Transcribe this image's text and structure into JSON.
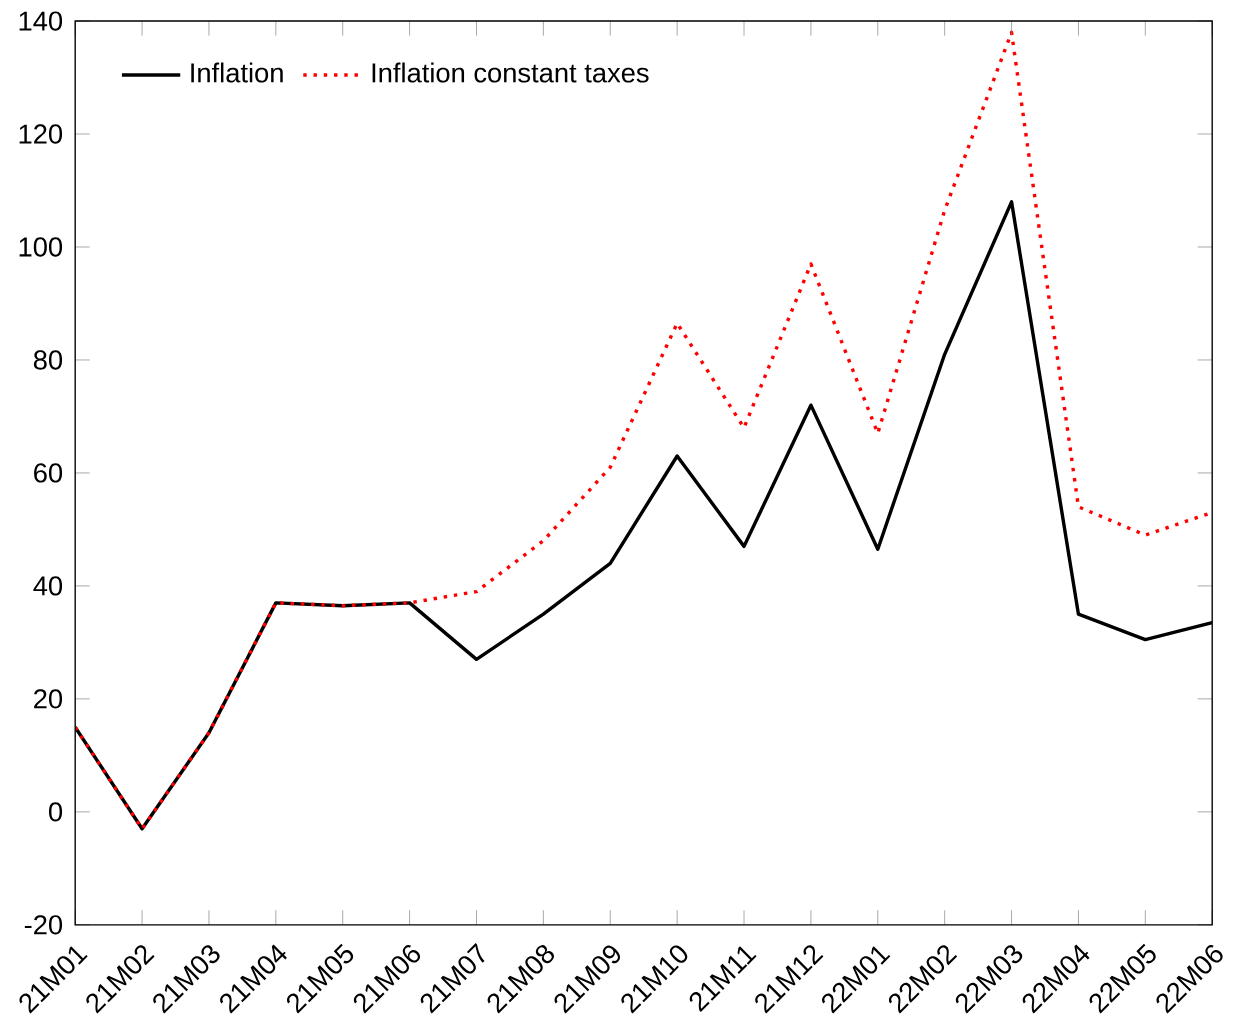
{
  "chart_data": {
    "type": "line",
    "categories": [
      "21M01",
      "21M02",
      "21M03",
      "21M04",
      "21M05",
      "21M06",
      "21M07",
      "21M08",
      "21M09",
      "21M10",
      "21M11",
      "21M12",
      "22M01",
      "22M02",
      "22M03",
      "22M04",
      "22M05",
      "22M06"
    ],
    "series": [
      {
        "name": "Inflation",
        "color": "#000000",
        "line_style": "solid",
        "values": [
          15,
          -3,
          14,
          37,
          36.5,
          37,
          27,
          35,
          44,
          63,
          47,
          72,
          46.5,
          81,
          108,
          35,
          30.5,
          33.5
        ]
      },
      {
        "name": "Inflation constant taxes",
        "color": "#ff0000",
        "line_style": "dotted",
        "values": [
          15,
          -3,
          14,
          37,
          36.5,
          37,
          39,
          48,
          61,
          86.5,
          68,
          97,
          67,
          106.5,
          138,
          54,
          49,
          53
        ]
      }
    ],
    "ylim": [
      -20,
      140
    ],
    "yticks": [
      -20,
      0,
      20,
      40,
      60,
      80,
      100,
      120,
      140
    ],
    "grid": false,
    "legend": "top left",
    "marker": "none"
  }
}
